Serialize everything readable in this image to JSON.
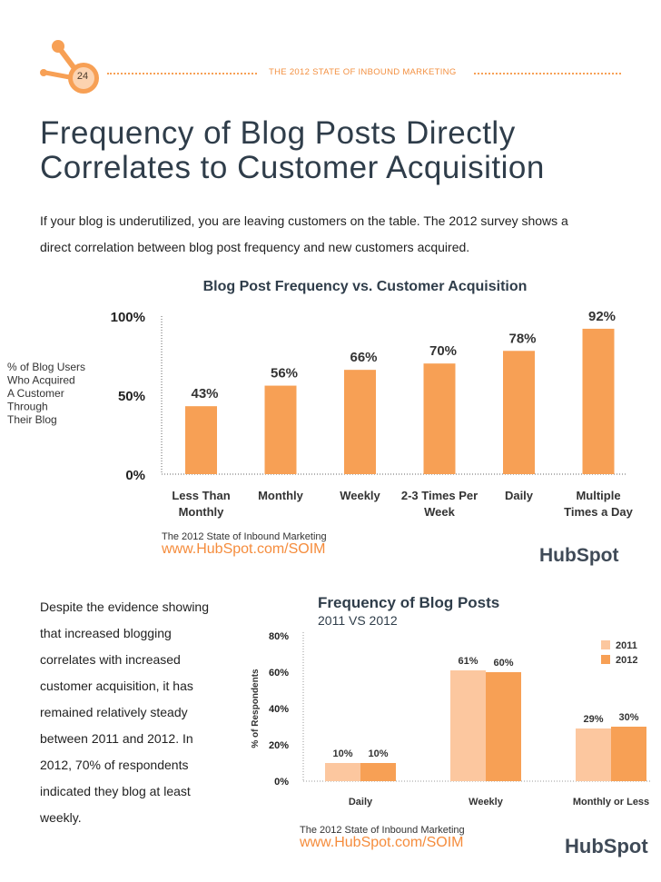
{
  "header": {
    "page_number": "24",
    "title": "THE 2012 STATE OF INBOUND MARKETING"
  },
  "main_title": {
    "line1": "Frequency of Blog Posts Directly",
    "line2": "Correlates to Customer Acquisition"
  },
  "intro": {
    "line1": "If your blog is underutilized, you are leaving customers on the table. The 2012 survey shows a",
    "line2": "direct correlation between blog post frequency and new customers acquired."
  },
  "colors": {
    "accent": "#f7a055",
    "bar_2011": "#fcc79f",
    "bar_2012": "#f7a055",
    "title": "#2f3d4a",
    "url": "#f58c3c"
  },
  "chart_data": [
    {
      "type": "bar",
      "title": "Blog Post Frequency vs. Customer Acquisition",
      "ylabel_lines": [
        "% of Blog Users",
        "Who Acquired",
        "A Customer",
        "Through",
        "Their Blog"
      ],
      "categories": [
        [
          "Less Than",
          "Monthly"
        ],
        [
          "Monthly"
        ],
        [
          "Weekly"
        ],
        [
          "2-3 Times Per",
          "Week"
        ],
        [
          "Daily"
        ],
        [
          "Multiple",
          "Times a Day"
        ]
      ],
      "values": [
        43,
        56,
        66,
        70,
        78,
        92
      ],
      "value_labels": [
        "43%",
        "56%",
        "66%",
        "70%",
        "78%",
        "92%"
      ],
      "ylim": [
        0,
        100
      ],
      "yticks": [
        0,
        50,
        100
      ],
      "ytick_labels": [
        "0%",
        "50%",
        "100%"
      ],
      "grid": false,
      "source": "The 2012 State of Inbound Marketing",
      "url": "www.HubSpot.com/SOIM",
      "logo": "HubSpot"
    },
    {
      "type": "bar",
      "title": "Frequency of Blog Posts",
      "subtitle": "2011 VS 2012",
      "ylabel": "% of Respondents",
      "categories": [
        "Daily",
        "Weekly",
        "Monthly or Less"
      ],
      "series": [
        {
          "name": "2011",
          "values": [
            10,
            61,
            29
          ],
          "labels": [
            "10%",
            "61%",
            "29%"
          ]
        },
        {
          "name": "2012",
          "values": [
            10,
            60,
            30
          ],
          "labels": [
            "10%",
            "60%",
            "30%"
          ]
        }
      ],
      "ylim": [
        0,
        80
      ],
      "yticks": [
        0,
        20,
        40,
        60,
        80
      ],
      "ytick_labels": [
        "0%",
        "20%",
        "40%",
        "60%",
        "80%"
      ],
      "legend_position": "top-right",
      "grid": false,
      "source": "The 2012 State of Inbound Marketing",
      "url": "www.HubSpot.com/SOIM",
      "logo": "HubSpot"
    }
  ],
  "body_text": {
    "lines": [
      "Despite the evidence showing",
      "that increased blogging",
      "correlates with increased",
      "customer acquisition, it has",
      "remained relatively steady",
      "between 2011 and 2012. In",
      "2012, 70% of respondents",
      "indicated they blog at least",
      "weekly."
    ]
  }
}
